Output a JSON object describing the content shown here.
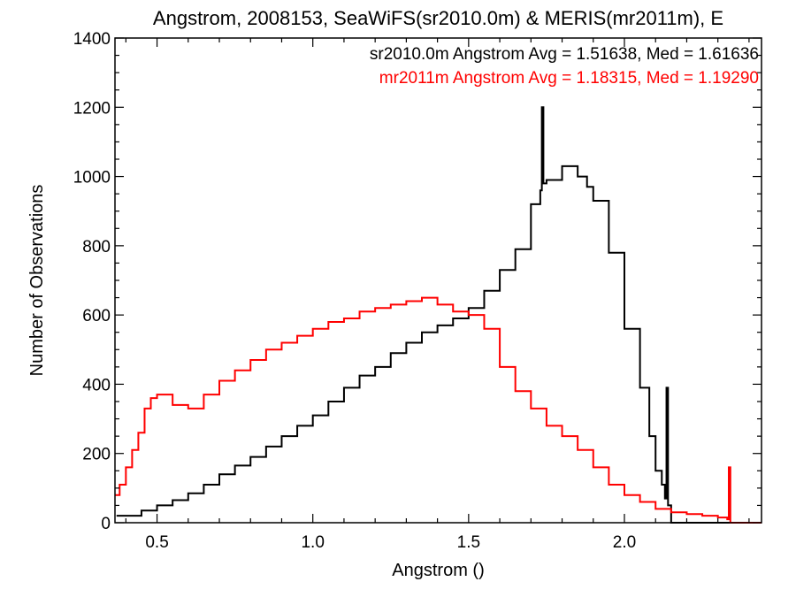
{
  "chart_data": {
    "type": "histogram",
    "title": "Angstrom, 2008153, SeaWiFS(sr2010.0m) & MERIS(mr2011m), E",
    "xlabel": "Angstrom ()",
    "ylabel": "Number of Observations",
    "xlim": [
      0.365,
      2.44
    ],
    "ylim": [
      0,
      1400
    ],
    "x_ticks": [
      0.5,
      1.0,
      1.5,
      2.0
    ],
    "x_tick_labels": [
      "0.5",
      "1.0",
      "1.5",
      "2.0"
    ],
    "y_ticks": [
      0,
      200,
      400,
      600,
      800,
      1000,
      1200,
      1400
    ],
    "y_tick_labels": [
      "0",
      "200",
      "400",
      "600",
      "800",
      "1000",
      "1200",
      "1400"
    ],
    "grid": false,
    "legend_position": "top-right",
    "series": [
      {
        "name": "sr2010.0m Angstrom Avg = 1.51638, Med = 1.61636",
        "color": "#000000",
        "x": [
          0.37,
          0.45,
          0.5,
          0.55,
          0.6,
          0.65,
          0.7,
          0.75,
          0.8,
          0.85,
          0.9,
          0.95,
          1.0,
          1.05,
          1.1,
          1.15,
          1.2,
          1.25,
          1.3,
          1.35,
          1.4,
          1.45,
          1.5,
          1.55,
          1.6,
          1.65,
          1.7,
          1.73,
          1.735,
          1.74,
          1.75,
          1.8,
          1.85,
          1.88,
          1.9,
          1.95,
          2.0,
          2.05,
          2.08,
          2.1,
          2.12,
          2.13,
          2.135,
          2.14,
          2.15,
          2.2,
          2.3,
          2.44
        ],
        "y": [
          20,
          35,
          50,
          65,
          85,
          110,
          140,
          165,
          190,
          220,
          250,
          280,
          310,
          350,
          390,
          425,
          450,
          490,
          520,
          550,
          570,
          590,
          620,
          670,
          730,
          790,
          920,
          960,
          1200,
          980,
          990,
          1030,
          1000,
          970,
          930,
          780,
          560,
          390,
          250,
          150,
          110,
          70,
          390,
          50,
          0,
          0,
          0,
          0
        ]
      },
      {
        "name": "mr2011m Angstrom Avg = 1.18315, Med = 1.19290",
        "color": "#ff0000",
        "x": [
          0.365,
          0.38,
          0.4,
          0.42,
          0.44,
          0.46,
          0.48,
          0.5,
          0.55,
          0.6,
          0.65,
          0.7,
          0.75,
          0.8,
          0.85,
          0.9,
          0.95,
          1.0,
          1.05,
          1.1,
          1.15,
          1.2,
          1.25,
          1.3,
          1.35,
          1.4,
          1.45,
          1.5,
          1.55,
          1.6,
          1.65,
          1.7,
          1.75,
          1.8,
          1.85,
          1.9,
          1.95,
          2.0,
          2.05,
          2.1,
          2.15,
          2.2,
          2.25,
          2.3,
          2.33,
          2.335,
          2.34,
          2.44
        ],
        "y": [
          80,
          110,
          160,
          210,
          260,
          330,
          360,
          370,
          340,
          330,
          370,
          410,
          440,
          470,
          500,
          520,
          540,
          560,
          580,
          590,
          610,
          620,
          630,
          640,
          650,
          630,
          610,
          600,
          560,
          450,
          380,
          330,
          280,
          250,
          210,
          160,
          110,
          80,
          60,
          40,
          30,
          25,
          20,
          15,
          10,
          160,
          0,
          0
        ]
      }
    ]
  }
}
